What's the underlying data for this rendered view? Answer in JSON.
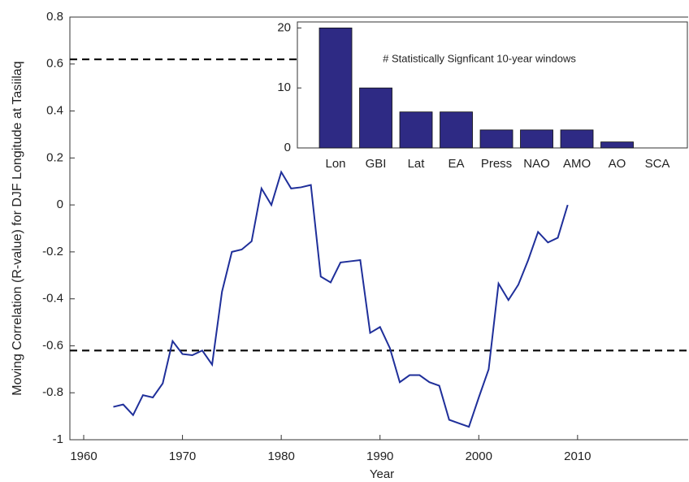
{
  "chart_data": [
    {
      "type": "line",
      "xlabel": "Year",
      "ylabel": "Moving Correlation (R-value) for DJF Longitude at Tasiilaq",
      "x": [
        1963,
        1964,
        1965,
        1966,
        1967,
        1968,
        1969,
        1970,
        1971,
        1972,
        1973,
        1974,
        1975,
        1976,
        1977,
        1978,
        1979,
        1980,
        1981,
        1982,
        1983,
        1984,
        1985,
        1986,
        1987,
        1988,
        1989,
        1990,
        1991,
        1992,
        1993,
        1994,
        1995,
        1996,
        1997,
        1998,
        1999,
        2000,
        2001,
        2002,
        2003,
        2004,
        2005,
        2006,
        2007,
        2008,
        2009
      ],
      "series": [
        {
          "color": "#1f2f9a",
          "values": [
            -0.86,
            -0.85,
            -0.895,
            -0.81,
            -0.82,
            -0.76,
            -0.58,
            -0.635,
            -0.64,
            -0.62,
            -0.68,
            -0.37,
            -0.2,
            -0.19,
            -0.155,
            0.07,
            0,
            0.14,
            0.07,
            0.075,
            0.085,
            -0.305,
            -0.33,
            -0.245,
            -0.24,
            -0.235,
            -0.545,
            -0.52,
            -0.61,
            -0.755,
            -0.725,
            -0.725,
            -0.755,
            -0.77,
            -0.915,
            -0.93,
            -0.945,
            -0.82,
            -0.7,
            -0.335,
            -0.405,
            -0.34,
            -0.235,
            -0.115,
            -0.16,
            -0.14,
            0
          ]
        }
      ],
      "reference_lines": [
        0.62,
        -0.62
      ],
      "xlim": [
        1958.6,
        2021.2
      ],
      "ylim": [
        -1,
        0.8
      ],
      "xticks": [
        1960,
        1970,
        1980,
        1990,
        2000,
        2010
      ],
      "yticks": [
        -1,
        -0.8,
        -0.6,
        -0.4,
        -0.2,
        0,
        0.2,
        0.4,
        0.6,
        0.8
      ]
    },
    {
      "type": "bar",
      "annotation": "# Statistically Signficant 10-year windows",
      "categories": [
        "Lon",
        "GBI",
        "Lat",
        "EA",
        "Press",
        "NAO",
        "AMO",
        "AO",
        "SCA"
      ],
      "values": [
        20,
        10,
        6,
        6,
        3,
        3,
        3,
        1,
        0
      ],
      "color": "#2e2a84",
      "ylim": [
        0,
        21
      ],
      "yticks": [
        0,
        10,
        20
      ]
    }
  ]
}
